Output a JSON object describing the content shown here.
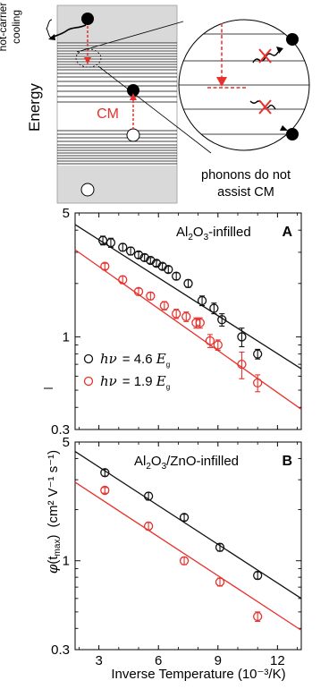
{
  "schematic": {
    "hot_carrier_label_line1": "hot-carrier",
    "hot_carrier_label_line2": "cooling",
    "energy_label": "Energy",
    "cm_label": "CM",
    "phonon_caption_line1": "phonons do not",
    "phonon_caption_line2": "assist CM"
  },
  "colors": {
    "black_series": "#111111",
    "red_series": "#e8312c",
    "band_gray": "#d9d9d9",
    "arrow_red": "#e8312c"
  },
  "shared_axes": {
    "ylabel_symbol": "φ",
    "ylabel_sub": "max",
    "ylabel_t": "(t",
    "ylabel_close": ")",
    "ylabel_units": "(cm² V⁻¹ s⁻¹)",
    "xlabel": "Inverse Temperature (10⁻³/K)",
    "xticks": [
      3,
      6,
      9,
      12
    ],
    "xlim": [
      1.8,
      13.2
    ],
    "yscale": "log",
    "yticks": [
      {
        "value": 0.3,
        "label": "0.3"
      },
      {
        "value": 1,
        "label": "1"
      },
      {
        "value": 5,
        "label": "5"
      }
    ]
  },
  "chart_data": [
    {
      "type": "scatter",
      "panel_letter": "A",
      "title_prefix": "Al",
      "title_sub1": "2",
      "title_mid": "O",
      "title_sub2": "3",
      "title_suffix": "-infilled",
      "ylim": [
        0.3,
        5
      ],
      "yscale": "log",
      "legend": [
        {
          "prefix": "hν = 4.6 E",
          "sub": "g",
          "color": "#111111"
        },
        {
          "prefix": "hν = 1.9 E",
          "sub": "g",
          "color": "#e8312c"
        }
      ],
      "series": [
        {
          "color": "#111111",
          "x": [
            3.2,
            3.6,
            4.2,
            4.6,
            5.0,
            5.3,
            5.6,
            5.9,
            6.2,
            6.5,
            6.9,
            7.5,
            8.2,
            8.8,
            9.2,
            10.2,
            11.0
          ],
          "y": [
            3.5,
            3.4,
            3.2,
            3.05,
            2.9,
            2.8,
            2.7,
            2.6,
            2.5,
            2.4,
            2.2,
            2.0,
            1.6,
            1.45,
            1.25,
            1.0,
            0.8
          ],
          "err": [
            0.2,
            0.2,
            0.15,
            0.15,
            0.12,
            0.12,
            0.1,
            0.1,
            0.1,
            0.1,
            0.1,
            0.1,
            0.1,
            0.1,
            0.1,
            0.12,
            0.05
          ],
          "fit": [
            [
              1.8,
              4.3
            ],
            [
              13.2,
              0.66
            ]
          ]
        },
        {
          "color": "#e8312c",
          "x": [
            3.3,
            4.2,
            5.0,
            5.6,
            6.3,
            6.9,
            7.4,
            7.9,
            8.1,
            8.6,
            9.0,
            10.2,
            11.0
          ],
          "y": [
            2.5,
            2.1,
            1.8,
            1.7,
            1.5,
            1.35,
            1.3,
            1.2,
            1.2,
            0.95,
            0.9,
            0.7,
            0.55
          ],
          "err": [
            0.1,
            0.1,
            0.08,
            0.08,
            0.08,
            0.08,
            0.08,
            0.08,
            0.08,
            0.08,
            0.06,
            0.12,
            0.06
          ],
          "fit": [
            [
              1.8,
              3.1
            ],
            [
              13.2,
              0.39
            ]
          ]
        }
      ]
    },
    {
      "type": "scatter",
      "panel_letter": "B",
      "title_prefix": "Al",
      "title_sub1": "2",
      "title_mid": "O",
      "title_sub2": "3",
      "title_suffix": "/ZnO-infilled",
      "ylim": [
        0.3,
        5
      ],
      "yscale": "log",
      "series": [
        {
          "color": "#111111",
          "x": [
            3.3,
            5.5,
            7.3,
            9.1,
            11.0
          ],
          "y": [
            3.3,
            2.4,
            1.8,
            1.2,
            0.82
          ],
          "err": [
            0.15,
            0.12,
            0.08,
            0.06,
            0.04
          ],
          "fit": [
            [
              1.8,
              4.4
            ],
            [
              13.2,
              0.6
            ]
          ]
        },
        {
          "color": "#e8312c",
          "x": [
            3.3,
            5.5,
            7.3,
            9.1,
            11.0
          ],
          "y": [
            2.6,
            1.6,
            1.0,
            0.75,
            0.47
          ],
          "err": [
            0.1,
            0.08,
            0.05,
            0.04,
            0.03
          ],
          "fit": [
            [
              1.8,
              2.9
            ],
            [
              13.2,
              0.39
            ]
          ]
        }
      ]
    }
  ]
}
